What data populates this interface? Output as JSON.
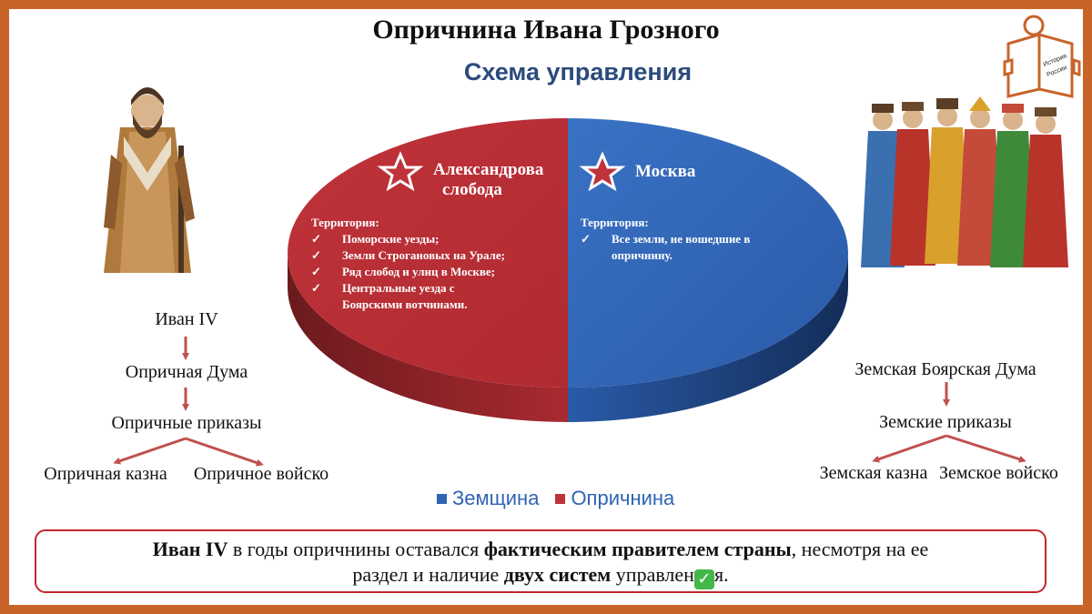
{
  "header": {
    "title": "Опричнина Ивана Грозного",
    "subtitle": "Схема управления"
  },
  "logo": {
    "line1": "История",
    "line2": "России"
  },
  "pie": {
    "oprichnina": {
      "title_line1": "Александрова",
      "title_line2": "слобода",
      "territory_label": "Территория:",
      "items": [
        "Поморские уезды;",
        "Земли Строгановых на Урале;",
        "Ряд слобод и улиц в Москве;",
        "Центральные уезда с",
        "Боярскими вотчинами."
      ]
    },
    "zemshchina": {
      "title": "Москва",
      "territory_label": "Территория:",
      "items": [
        "Все земли, не вошедшие в",
        "опричнину."
      ]
    },
    "colors": {
      "zemshchina": "#2f64b4",
      "oprichnina": "#c0333a"
    }
  },
  "left_scheme": {
    "top": "Иван IV",
    "level2": "Опричная Дума",
    "level3": "Опричные приказы",
    "bottom_left": "Опричная казна",
    "bottom_right": "Опричное войско"
  },
  "right_scheme": {
    "top": "Земская Боярская Дума",
    "level2": "Земские приказы",
    "bottom_left": "Земская казна",
    "bottom_right": "Земское войско"
  },
  "legend": {
    "zemshchina": "Земщина",
    "oprichnina": "Опричнина"
  },
  "note": {
    "b1": "Иван IV",
    "t1": " в годы опричнины оставался ",
    "b2": "фактическим правителем страны",
    "t2": ", несмотря на ее",
    "t3": "раздел и наличие ",
    "b3": "двух систем",
    "t4": " управлен",
    "t5": "я."
  }
}
